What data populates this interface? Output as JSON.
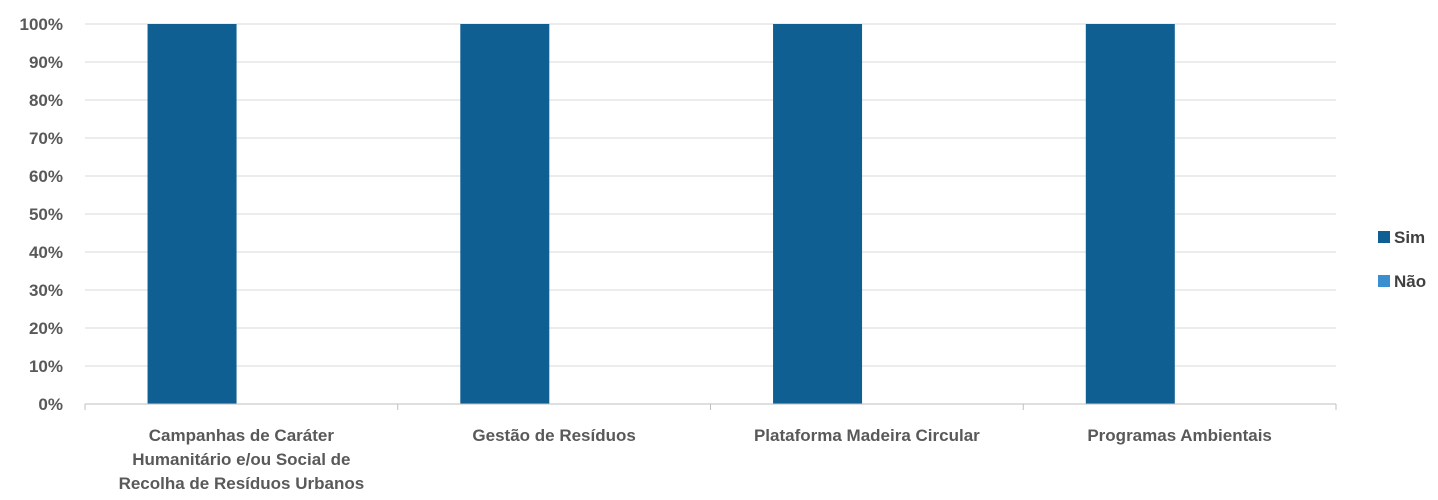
{
  "chart_data": {
    "type": "bar",
    "stacked": true,
    "categories": [
      [
        "Campanhas de Caráter",
        "Humanitário e/ou Social de",
        "Recolha de Resíduos Urbanos"
      ],
      [
        "Gestão de Resíduos"
      ],
      [
        "Plataforma Madeira Circular"
      ],
      [
        "Programas Ambientais"
      ]
    ],
    "series": [
      {
        "name": "Sim",
        "color": "#0f5f93",
        "values": [
          100,
          100,
          100,
          100
        ]
      },
      {
        "name": "Não",
        "color": "#3a8fd0",
        "values": [
          0,
          0,
          0,
          0
        ]
      }
    ],
    "ylim": [
      0,
      100
    ],
    "yticks": [
      "0%",
      "10%",
      "20%",
      "30%",
      "40%",
      "50%",
      "60%",
      "70%",
      "80%",
      "90%",
      "100%"
    ],
    "grid": true,
    "legend": "right"
  }
}
